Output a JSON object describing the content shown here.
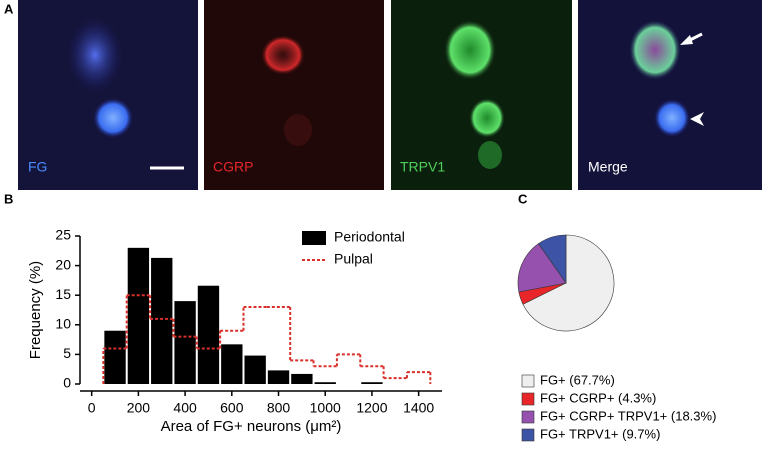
{
  "panel_a": {
    "label": "A",
    "images": [
      {
        "label": "FG"
      },
      {
        "label": "CGRP"
      },
      {
        "label": "TRPV1"
      },
      {
        "label": "Merge"
      }
    ]
  },
  "chart_data": [
    {
      "type": "histogram",
      "panel": "B",
      "x_label": "Area of FG+ neurons (μm²)",
      "y_label": "Frequency (%)",
      "bins": [
        50,
        150,
        250,
        350,
        450,
        550,
        650,
        750,
        850,
        950,
        1050,
        1150,
        1250,
        1350,
        1450
      ],
      "series": [
        {
          "name": "Periodontal",
          "color": "#000000",
          "style": "bar",
          "values": [
            9,
            23,
            21.3,
            14,
            16.6,
            6.7,
            4.8,
            2.3,
            1.7,
            0.3,
            0,
            0.3,
            0,
            0
          ]
        },
        {
          "name": "Pulpal",
          "color": "#d9302c",
          "style": "step",
          "values": [
            6,
            15,
            11,
            8,
            6,
            9,
            13,
            13,
            4,
            3,
            5,
            3,
            1,
            2
          ]
        }
      ],
      "xlim": [
        -50,
        1500
      ],
      "xticks": [
        0,
        200,
        400,
        600,
        800,
        1000,
        1200,
        1400
      ],
      "ylim": [
        0,
        25
      ],
      "yticks": [
        0,
        5,
        10,
        15,
        20,
        25
      ],
      "legend": "upper right"
    },
    {
      "type": "pie",
      "panel": "C",
      "categories": [
        "FG+ (67.7%)",
        "FG+ CGRP+ (4.3%)",
        "FG+ CGRP+ TRPV1+ (18.3%)",
        "FG+ TRPV1+ (9.7%)"
      ],
      "values": [
        67.7,
        4.3,
        18.3,
        9.7
      ],
      "colors": [
        "#efefef",
        "#e8262a",
        "#9650ad",
        "#3d54a6"
      ],
      "legend": "below"
    }
  ]
}
